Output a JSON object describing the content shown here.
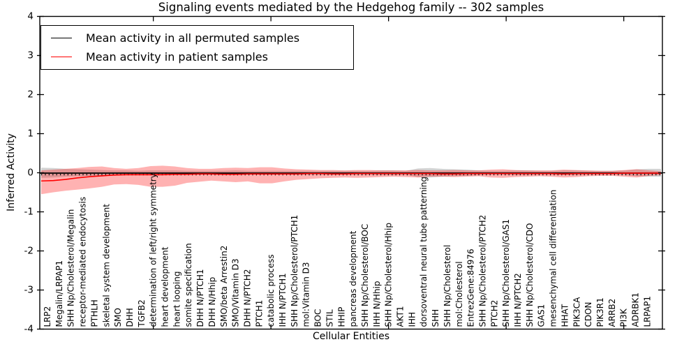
{
  "chart_data": {
    "type": "line",
    "title": "Signaling events mediated by the Hedgehog family -- 302 samples",
    "xlabel": "Cellular Entities",
    "ylabel": "Inferred Activity",
    "ylim": [
      -4,
      4
    ],
    "grid": false,
    "legend_position": "upper left",
    "yticks": [
      {
        "value": -4,
        "label": "-4"
      },
      {
        "value": -3,
        "label": "-3"
      },
      {
        "value": -2,
        "label": "-2"
      },
      {
        "value": -1,
        "label": "-1"
      },
      {
        "value": 0,
        "label": "0"
      },
      {
        "value": 1,
        "label": "1"
      },
      {
        "value": 2,
        "label": "2"
      },
      {
        "value": 3,
        "label": "3"
      },
      {
        "value": 4,
        "label": "4"
      }
    ],
    "xticks_major_indices": [
      9,
      19,
      29,
      39,
      49
    ],
    "categories": [
      "LRP2",
      "Megalin/LRPAP1",
      "SHH Np/Cholesterol/Megalin",
      "receptor-mediated endocytosis",
      "PTHLH",
      "skeletal system development",
      "SMO",
      "DHH",
      "TGFB2",
      "determination of left/right symmetry",
      "heart development",
      "heart looping",
      "somite specification",
      "DHH N/PTCH1",
      "DHH N/Hhip",
      "SMO/beta Arrestin2",
      "SMO/Vitamin D3",
      "DHH N/PTCH2",
      "PTCH1",
      "catabolic process",
      "IHH N/PTCH1",
      "SHH Np/Cholesterol/PTCH1",
      "mol:Vitamin D3",
      "BOC",
      "STIL",
      "HHIP",
      "pancreas development",
      "SHH Np/Cholesterol/BOC",
      "IHH N/Hhip",
      "SHH Np/Cholesterol/Hhip",
      "AKT1",
      "IHH",
      "dorsoventral neural tube patterning",
      "SHH",
      "SHH Np/Cholesterol",
      "mol:Cholesterol",
      "EntrezGene:84976",
      "SHH Np/Cholesterol/PTCH2",
      "PTCH2",
      "SHH Np/Cholesterol/GAS1",
      "IHH N/PTCH2",
      "SHH Np/Cholesterol/CDO",
      "GAS1",
      "mesenchymal cell differentiation",
      "HHAT",
      "PIK3CA",
      "CDON",
      "PIK3R1",
      "ARRB2",
      "PI3K",
      "ADRBK1",
      "LRPAP1"
    ],
    "series": [
      {
        "name": "Mean activity in all permuted samples",
        "color": "#000000",
        "band_color": "rgba(128,128,128,0.35)",
        "values": [
          0,
          0,
          0,
          0,
          0,
          0,
          0,
          0,
          0,
          0,
          0,
          0,
          0,
          0,
          0,
          0,
          0,
          0,
          0,
          0,
          0,
          0,
          0,
          0,
          0,
          0,
          0,
          0,
          0,
          0,
          0,
          0,
          0,
          0,
          0,
          0,
          0,
          0,
          0,
          0,
          0,
          0,
          0,
          0,
          0,
          0,
          0,
          0,
          0,
          0,
          0,
          0
        ],
        "band_upper": [
          0.13,
          0.12,
          0.1,
          0.09,
          0.08,
          0.07,
          0.06,
          0.06,
          0.05,
          0.06,
          0.06,
          0.06,
          0.05,
          0.05,
          0.05,
          0.05,
          0.06,
          0.05,
          0.05,
          0.05,
          0.05,
          0.05,
          0.05,
          0.05,
          0.05,
          0.05,
          0.05,
          0.05,
          0.06,
          0.06,
          0.05,
          0.11,
          0.12,
          0.1,
          0.09,
          0.08,
          0.06,
          0.05,
          0.05,
          0.06,
          0.06,
          0.05,
          0.05,
          0.06,
          0.06,
          0.05,
          0.05,
          0.05,
          0.06,
          0.09,
          0.1,
          0.1
        ],
        "band_lower": [
          -0.13,
          -0.12,
          -0.1,
          -0.09,
          -0.08,
          -0.07,
          -0.06,
          -0.06,
          -0.05,
          -0.06,
          -0.06,
          -0.06,
          -0.05,
          -0.05,
          -0.05,
          -0.05,
          -0.06,
          -0.05,
          -0.05,
          -0.05,
          -0.05,
          -0.05,
          -0.05,
          -0.05,
          -0.05,
          -0.05,
          -0.05,
          -0.05,
          -0.06,
          -0.06,
          -0.05,
          -0.11,
          -0.12,
          -0.1,
          -0.09,
          -0.08,
          -0.06,
          -0.05,
          -0.05,
          -0.06,
          -0.06,
          -0.05,
          -0.05,
          -0.06,
          -0.06,
          -0.05,
          -0.05,
          -0.05,
          -0.06,
          -0.09,
          -0.1,
          -0.1
        ]
      },
      {
        "name": "Mean activity in patient samples",
        "color": "#ff0000",
        "band_color": "rgba(255,0,0,0.30)",
        "values": [
          -0.21,
          -0.2,
          -0.17,
          -0.13,
          -0.1,
          -0.08,
          -0.06,
          -0.05,
          -0.05,
          -0.05,
          -0.05,
          -0.04,
          -0.04,
          -0.03,
          -0.03,
          -0.04,
          -0.04,
          -0.03,
          -0.03,
          -0.03,
          -0.03,
          -0.03,
          -0.02,
          -0.02,
          -0.03,
          -0.03,
          -0.02,
          -0.02,
          -0.02,
          -0.02,
          -0.02,
          -0.02,
          -0.02,
          -0.03,
          -0.03,
          -0.02,
          -0.02,
          -0.02,
          -0.02,
          -0.02,
          -0.02,
          -0.02,
          -0.02,
          -0.03,
          -0.02,
          -0.02,
          -0.02,
          -0.02,
          -0.01,
          -0.01,
          -0.01,
          -0.01
        ],
        "band_upper": [
          0.06,
          0.08,
          0.1,
          0.12,
          0.15,
          0.16,
          0.12,
          0.1,
          0.12,
          0.17,
          0.18,
          0.16,
          0.12,
          0.1,
          0.1,
          0.12,
          0.13,
          0.12,
          0.14,
          0.14,
          0.11,
          0.09,
          0.08,
          0.07,
          0.07,
          0.06,
          0.07,
          0.07,
          0.06,
          0.06,
          0.06,
          0.07,
          0.06,
          0.06,
          0.07,
          0.06,
          0.06,
          0.08,
          0.09,
          0.07,
          0.06,
          0.06,
          0.06,
          0.08,
          0.07,
          0.06,
          0.05,
          0.05,
          0.07,
          0.09,
          0.06,
          0.04
        ],
        "band_lower": [
          -0.55,
          -0.5,
          -0.46,
          -0.43,
          -0.4,
          -0.36,
          -0.3,
          -0.29,
          -0.31,
          -0.36,
          -0.36,
          -0.33,
          -0.26,
          -0.23,
          -0.2,
          -0.22,
          -0.24,
          -0.22,
          -0.27,
          -0.27,
          -0.22,
          -0.18,
          -0.16,
          -0.14,
          -0.13,
          -0.12,
          -0.13,
          -0.12,
          -0.11,
          -0.1,
          -0.11,
          -0.12,
          -0.1,
          -0.1,
          -0.11,
          -0.1,
          -0.09,
          -0.12,
          -0.13,
          -0.11,
          -0.1,
          -0.09,
          -0.1,
          -0.12,
          -0.11,
          -0.09,
          -0.08,
          -0.08,
          -0.1,
          -0.12,
          -0.08,
          -0.06
        ]
      }
    ]
  }
}
